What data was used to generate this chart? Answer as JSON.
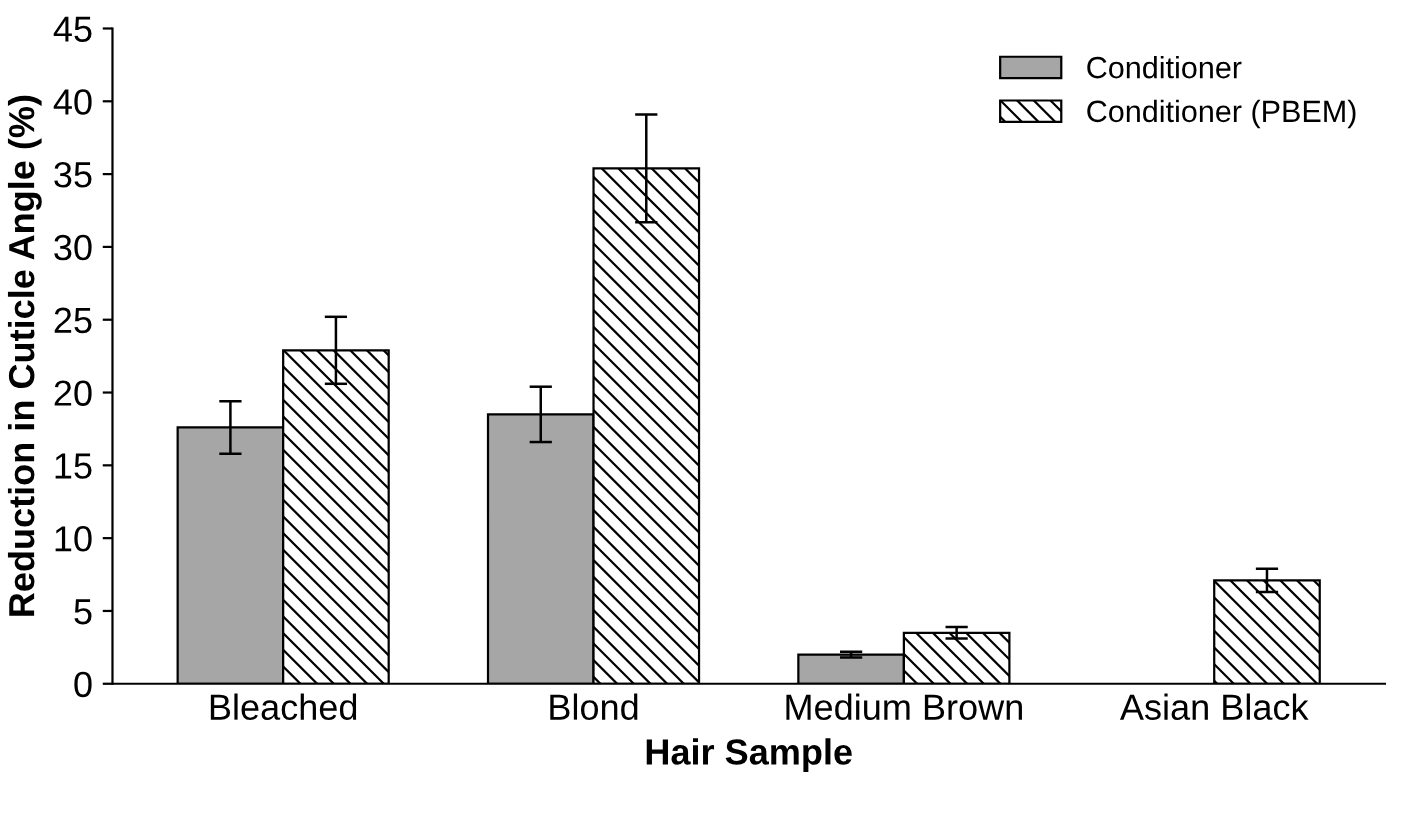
{
  "chart_data": {
    "type": "bar",
    "xlabel": "Hair Sample",
    "ylabel": "Reduction in Cuticle Angle (%)",
    "categories": [
      "Bleached",
      "Blond",
      "Medium Brown",
      "Asian Black"
    ],
    "series": [
      {
        "name": "Conditioner",
        "color": "#a6a6a6",
        "values": [
          17.6,
          18.5,
          2.0,
          null
        ],
        "errors": [
          1.8,
          1.9,
          0.2,
          null
        ]
      },
      {
        "name": "Conditioner (PBEM)",
        "color": "#000000",
        "values": [
          22.9,
          35.4,
          3.5,
          7.1
        ],
        "errors": [
          2.3,
          3.7,
          0.4,
          0.8
        ]
      }
    ],
    "ylim": [
      0,
      45
    ],
    "yticks": [
      0,
      5,
      10,
      15,
      20,
      25,
      30,
      35,
      40,
      45
    ],
    "grid": false,
    "legend": "top right"
  }
}
